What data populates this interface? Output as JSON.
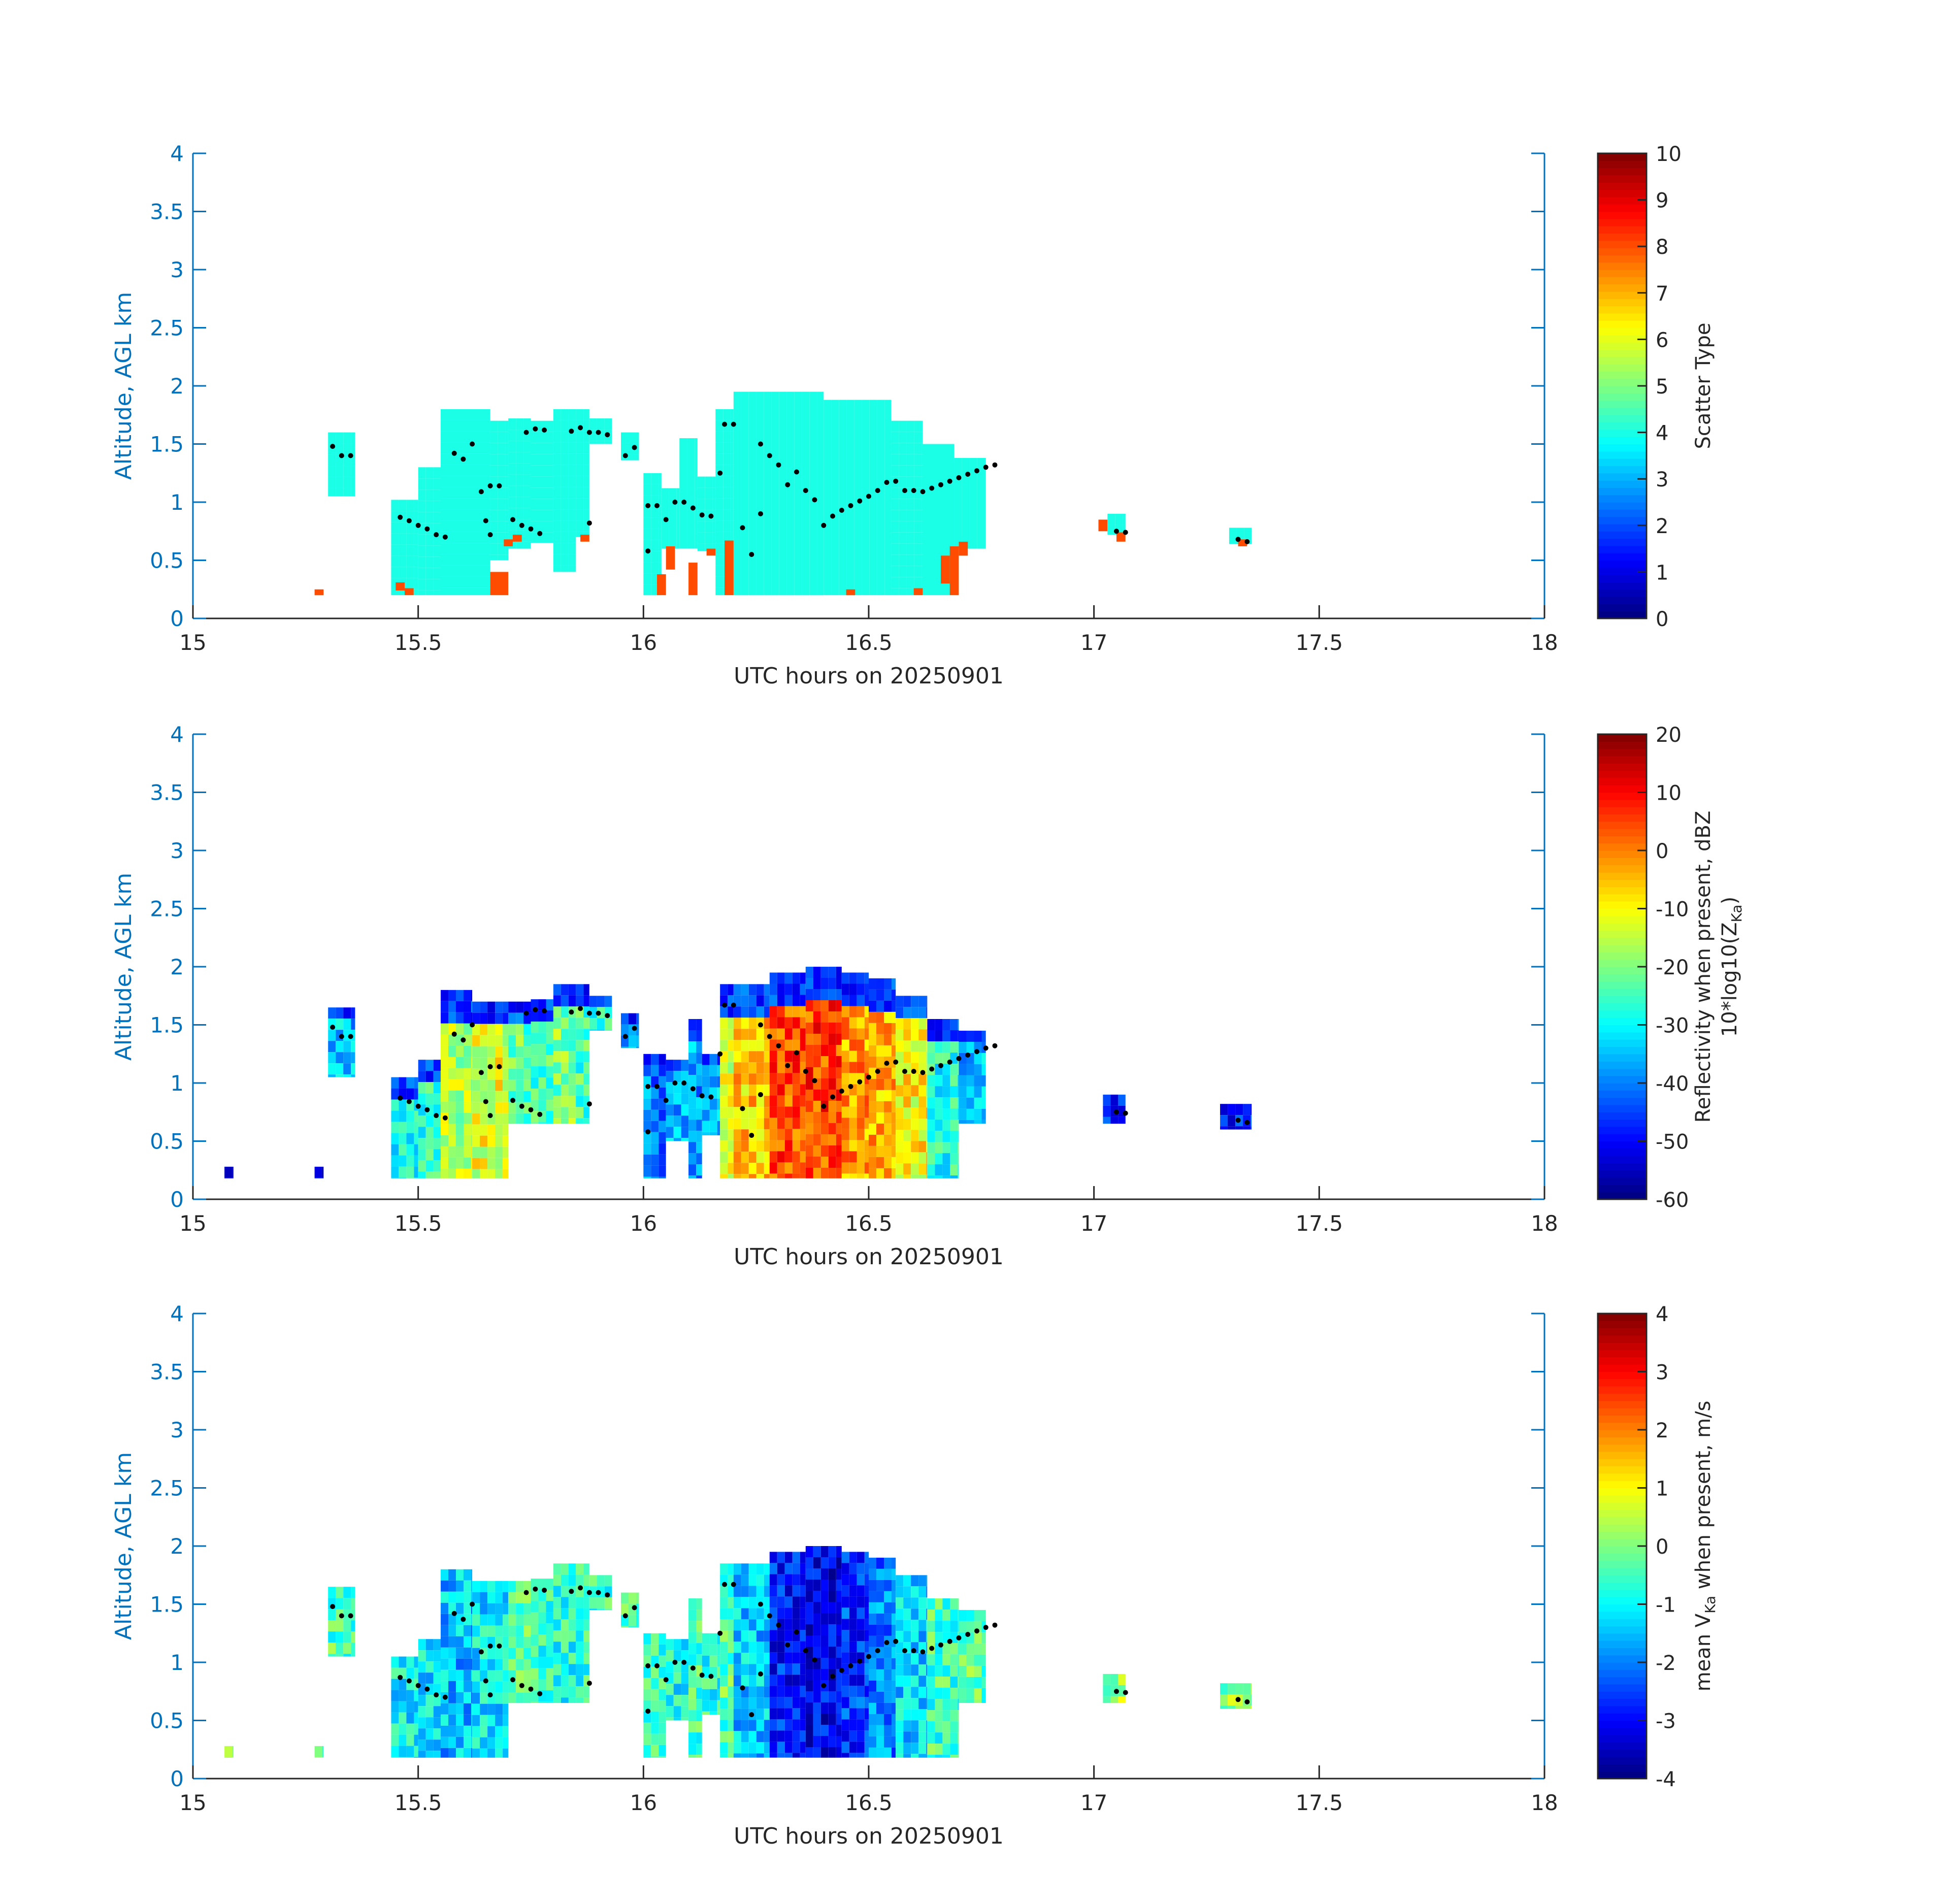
{
  "colors": {
    "axis_y": "#0072BD",
    "axis_x": "#262626",
    "track_dots": "#000000",
    "background": "#ffffff",
    "colormap": "jet"
  },
  "chart_data": [
    {
      "type": "heatmap",
      "title": "",
      "xlabel": "UTC hours on 20250901",
      "ylabel": "Altitude, AGL km",
      "xlim": [
        15,
        18
      ],
      "ylim": [
        0,
        4
      ],
      "xticks": [
        "15",
        "15.5",
        "16",
        "16.5",
        "17",
        "17.5",
        "18"
      ],
      "yticks": [
        "0",
        "0.5",
        "1",
        "1.5",
        "2",
        "2.5",
        "3",
        "3.5",
        "4"
      ],
      "colorbar": {
        "label": "Scatter Type",
        "range": [
          0,
          10
        ],
        "ticks": [
          "0",
          "1",
          "2",
          "3",
          "4",
          "5",
          "6",
          "7",
          "8",
          "9",
          "10"
        ]
      },
      "dominant_value": 4,
      "secondary_value": 8,
      "cloud_columns": [
        [
          15.3,
          15.36,
          1.05,
          1.6
        ],
        [
          15.44,
          15.5,
          0.2,
          1.02
        ],
        [
          15.5,
          15.55,
          0.2,
          1.3
        ],
        [
          15.55,
          15.66,
          0.2,
          1.8
        ],
        [
          15.66,
          15.7,
          0.5,
          1.7
        ],
        [
          15.7,
          15.75,
          0.6,
          1.72
        ],
        [
          15.75,
          15.8,
          0.65,
          1.7
        ],
        [
          15.8,
          15.85,
          0.4,
          1.8
        ],
        [
          15.85,
          15.88,
          0.7,
          1.8
        ],
        [
          15.88,
          15.93,
          1.5,
          1.72
        ],
        [
          15.95,
          15.99,
          1.36,
          1.6
        ],
        [
          16.0,
          16.04,
          0.2,
          1.25
        ],
        [
          16.04,
          16.08,
          0.6,
          1.12
        ],
        [
          16.08,
          16.12,
          0.6,
          1.55
        ],
        [
          16.12,
          16.16,
          0.58,
          1.22
        ],
        [
          16.16,
          16.2,
          0.2,
          1.8
        ],
        [
          16.2,
          16.4,
          0.2,
          1.95
        ],
        [
          16.4,
          16.55,
          0.2,
          1.88
        ],
        [
          16.55,
          16.62,
          0.2,
          1.7
        ],
        [
          16.62,
          16.69,
          0.2,
          1.5
        ],
        [
          16.69,
          16.76,
          0.6,
          1.38
        ],
        [
          17.03,
          17.07,
          0.72,
          0.9
        ],
        [
          17.3,
          17.35,
          0.64,
          0.78
        ]
      ],
      "secondary_patches": [
        [
          15.27,
          15.29,
          0.2,
          0.25
        ],
        [
          15.45,
          15.47,
          0.24,
          0.31
        ],
        [
          15.47,
          15.49,
          0.2,
          0.26
        ],
        [
          15.66,
          15.7,
          0.2,
          0.4
        ],
        [
          15.69,
          15.71,
          0.62,
          0.68
        ],
        [
          15.71,
          15.73,
          0.66,
          0.72
        ],
        [
          15.86,
          15.88,
          0.66,
          0.72
        ],
        [
          16.03,
          16.05,
          0.2,
          0.38
        ],
        [
          16.05,
          16.07,
          0.42,
          0.62
        ],
        [
          16.1,
          16.12,
          0.2,
          0.48
        ],
        [
          16.14,
          16.16,
          0.54,
          0.6
        ],
        [
          16.18,
          16.2,
          0.2,
          0.67
        ],
        [
          16.45,
          16.47,
          0.2,
          0.25
        ],
        [
          16.6,
          16.62,
          0.2,
          0.26
        ],
        [
          16.66,
          16.68,
          0.3,
          0.54
        ],
        [
          16.68,
          16.7,
          0.2,
          0.62
        ],
        [
          16.7,
          16.72,
          0.54,
          0.66
        ],
        [
          17.01,
          17.03,
          0.75,
          0.85
        ],
        [
          17.05,
          17.07,
          0.66,
          0.74
        ],
        [
          17.32,
          17.34,
          0.62,
          0.68
        ]
      ]
    },
    {
      "type": "heatmap",
      "title": "",
      "xlabel": "UTC hours on 20250901",
      "ylabel": "Altitude, AGL km",
      "xlim": [
        15,
        18
      ],
      "ylim": [
        0,
        4
      ],
      "xticks": [
        "15",
        "15.5",
        "16",
        "16.5",
        "17",
        "17.5",
        "18"
      ],
      "yticks": [
        "0",
        "0.5",
        "1",
        "1.5",
        "2",
        "2.5",
        "3",
        "3.5",
        "4"
      ],
      "colorbar": {
        "label": "Reflectivity when present, dBZ",
        "label2": "10*log10(Z",
        "label2_sub": "Ka",
        "label2_end": ")",
        "range": [
          -60,
          20
        ],
        "ticks": [
          "-60",
          "-50",
          "-40",
          "-30",
          "-20",
          "-10",
          "0",
          "10",
          "20"
        ]
      },
      "cloud_columns": [
        [
          15.07,
          15.09,
          0.18,
          0.28,
          -55
        ],
        [
          15.27,
          15.29,
          0.18,
          0.28,
          -55
        ],
        [
          15.3,
          15.36,
          1.05,
          1.65,
          -35
        ],
        [
          15.44,
          15.5,
          0.18,
          1.05,
          -28
        ],
        [
          15.5,
          15.55,
          0.18,
          1.2,
          -26
        ],
        [
          15.55,
          15.62,
          0.18,
          1.8,
          -16
        ],
        [
          15.62,
          15.7,
          0.18,
          1.7,
          -12
        ],
        [
          15.7,
          15.75,
          0.65,
          1.7,
          -22
        ],
        [
          15.75,
          15.8,
          0.65,
          1.72,
          -24
        ],
        [
          15.8,
          15.85,
          0.65,
          1.85,
          -20
        ],
        [
          15.85,
          15.88,
          0.65,
          1.85,
          -25
        ],
        [
          15.88,
          15.93,
          1.45,
          1.75,
          -28
        ],
        [
          15.95,
          15.99,
          1.3,
          1.6,
          -38
        ],
        [
          16.0,
          16.05,
          0.18,
          1.25,
          -40
        ],
        [
          16.05,
          16.1,
          0.5,
          1.2,
          -36
        ],
        [
          16.1,
          16.13,
          0.18,
          1.55,
          -38
        ],
        [
          16.13,
          16.17,
          0.55,
          1.25,
          -34
        ],
        [
          16.17,
          16.2,
          0.18,
          1.85,
          -14
        ],
        [
          16.2,
          16.28,
          0.18,
          1.85,
          -6
        ],
        [
          16.28,
          16.36,
          0.18,
          1.95,
          4
        ],
        [
          16.36,
          16.44,
          0.18,
          2.0,
          5
        ],
        [
          16.44,
          16.5,
          0.18,
          1.95,
          -2
        ],
        [
          16.5,
          16.56,
          0.18,
          1.9,
          -4
        ],
        [
          16.56,
          16.63,
          0.18,
          1.75,
          -10
        ],
        [
          16.63,
          16.7,
          0.18,
          1.55,
          -28
        ],
        [
          16.7,
          16.76,
          0.65,
          1.45,
          -36
        ],
        [
          17.02,
          17.07,
          0.65,
          0.9,
          -48
        ],
        [
          17.28,
          17.35,
          0.6,
          0.82,
          -48
        ]
      ]
    },
    {
      "type": "heatmap",
      "title": "",
      "xlabel": "UTC hours on 20250901",
      "ylabel": "Altitude, AGL km",
      "xlim": [
        15,
        18
      ],
      "ylim": [
        0,
        4
      ],
      "xticks": [
        "15",
        "15.5",
        "16",
        "16.5",
        "17",
        "17.5",
        "18"
      ],
      "yticks": [
        "0",
        "0.5",
        "1",
        "1.5",
        "2",
        "2.5",
        "3",
        "3.5",
        "4"
      ],
      "colorbar": {
        "label_pre": "mean V",
        "label_sub": "Ka",
        "label_post": " when present, m/s",
        "range": [
          -4,
          4
        ],
        "ticks": [
          "-4",
          "-3",
          "-2",
          "-1",
          "0",
          "1",
          "2",
          "3",
          "4"
        ]
      },
      "cloud_columns": [
        [
          15.07,
          15.09,
          0.18,
          0.28,
          0.2
        ],
        [
          15.27,
          15.29,
          0.18,
          0.28,
          0.2
        ],
        [
          15.3,
          15.36,
          1.05,
          1.65,
          -0.4
        ],
        [
          15.44,
          15.5,
          0.18,
          1.05,
          -1.0
        ],
        [
          15.5,
          15.55,
          0.18,
          1.2,
          -1.2
        ],
        [
          15.55,
          15.62,
          0.18,
          1.8,
          -1.5
        ],
        [
          15.62,
          15.7,
          0.18,
          1.7,
          -1.1
        ],
        [
          15.7,
          15.75,
          0.65,
          1.7,
          -0.3
        ],
        [
          15.75,
          15.8,
          0.65,
          1.72,
          -0.6
        ],
        [
          15.8,
          15.85,
          0.65,
          1.85,
          -0.8
        ],
        [
          15.85,
          15.88,
          0.65,
          1.85,
          -0.7
        ],
        [
          15.88,
          15.93,
          1.45,
          1.75,
          -0.6
        ],
        [
          15.95,
          15.99,
          1.3,
          1.6,
          -0.4
        ],
        [
          16.0,
          16.05,
          0.18,
          1.25,
          -0.6
        ],
        [
          16.05,
          16.1,
          0.5,
          1.2,
          -0.9
        ],
        [
          16.1,
          16.13,
          0.18,
          1.55,
          -0.5
        ],
        [
          16.13,
          16.17,
          0.55,
          1.25,
          -0.7
        ],
        [
          16.17,
          16.2,
          0.18,
          1.85,
          -0.3
        ],
        [
          16.2,
          16.28,
          0.18,
          1.85,
          -1.4
        ],
        [
          16.28,
          16.36,
          0.18,
          1.95,
          -2.8
        ],
        [
          16.36,
          16.44,
          0.18,
          2.0,
          -3.1
        ],
        [
          16.44,
          16.5,
          0.18,
          1.95,
          -2.6
        ],
        [
          16.5,
          16.56,
          0.18,
          1.9,
          -2.0
        ],
        [
          16.56,
          16.63,
          0.18,
          1.75,
          -1.3
        ],
        [
          16.63,
          16.7,
          0.18,
          1.55,
          -0.5
        ],
        [
          16.7,
          16.76,
          0.65,
          1.45,
          -0.3
        ],
        [
          17.02,
          17.07,
          0.65,
          0.9,
          0.2
        ],
        [
          17.28,
          17.35,
          0.6,
          0.82,
          0.1
        ]
      ]
    }
  ],
  "track_points": [
    [
      15.31,
      1.48
    ],
    [
      15.33,
      1.4
    ],
    [
      15.35,
      1.4
    ],
    [
      15.46,
      0.87
    ],
    [
      15.48,
      0.84
    ],
    [
      15.5,
      0.8
    ],
    [
      15.52,
      0.77
    ],
    [
      15.54,
      0.72
    ],
    [
      15.56,
      0.7
    ],
    [
      15.58,
      1.42
    ],
    [
      15.6,
      1.37
    ],
    [
      15.62,
      1.5
    ],
    [
      15.64,
      1.09
    ],
    [
      15.66,
      1.14
    ],
    [
      15.68,
      1.14
    ],
    [
      15.65,
      0.84
    ],
    [
      15.66,
      0.72
    ],
    [
      15.71,
      0.85
    ],
    [
      15.73,
      0.8
    ],
    [
      15.75,
      0.77
    ],
    [
      15.77,
      0.73
    ],
    [
      15.74,
      1.6
    ],
    [
      15.76,
      1.63
    ],
    [
      15.78,
      1.62
    ],
    [
      15.84,
      1.61
    ],
    [
      15.86,
      1.64
    ],
    [
      15.88,
      1.6
    ],
    [
      15.9,
      1.6
    ],
    [
      15.92,
      1.58
    ],
    [
      15.88,
      0.82
    ],
    [
      15.96,
      1.4
    ],
    [
      15.98,
      1.47
    ],
    [
      16.01,
      0.97
    ],
    [
      16.03,
      0.97
    ],
    [
      16.05,
      0.85
    ],
    [
      16.07,
      1.0
    ],
    [
      16.09,
      1.0
    ],
    [
      16.11,
      0.95
    ],
    [
      16.01,
      0.58
    ],
    [
      16.13,
      0.89
    ],
    [
      16.15,
      0.88
    ],
    [
      16.17,
      1.25
    ],
    [
      16.18,
      1.67
    ],
    [
      16.2,
      1.67
    ],
    [
      16.22,
      0.78
    ],
    [
      16.24,
      0.55
    ],
    [
      16.26,
      0.9
    ],
    [
      16.26,
      1.5
    ],
    [
      16.28,
      1.4
    ],
    [
      16.3,
      1.32
    ],
    [
      16.32,
      1.15
    ],
    [
      16.34,
      1.26
    ],
    [
      16.36,
      1.1
    ],
    [
      16.38,
      1.02
    ],
    [
      16.4,
      0.8
    ],
    [
      16.42,
      0.88
    ],
    [
      16.44,
      0.93
    ],
    [
      16.46,
      0.97
    ],
    [
      16.48,
      1.01
    ],
    [
      16.5,
      1.05
    ],
    [
      16.52,
      1.1
    ],
    [
      16.54,
      1.17
    ],
    [
      16.56,
      1.18
    ],
    [
      16.58,
      1.1
    ],
    [
      16.6,
      1.1
    ],
    [
      16.62,
      1.09
    ],
    [
      16.64,
      1.12
    ],
    [
      16.66,
      1.15
    ],
    [
      16.68,
      1.18
    ],
    [
      16.7,
      1.21
    ],
    [
      16.72,
      1.24
    ],
    [
      16.74,
      1.27
    ],
    [
      16.76,
      1.3
    ],
    [
      16.78,
      1.32
    ],
    [
      17.05,
      0.75
    ],
    [
      17.07,
      0.74
    ],
    [
      17.32,
      0.68
    ],
    [
      17.34,
      0.66
    ]
  ]
}
